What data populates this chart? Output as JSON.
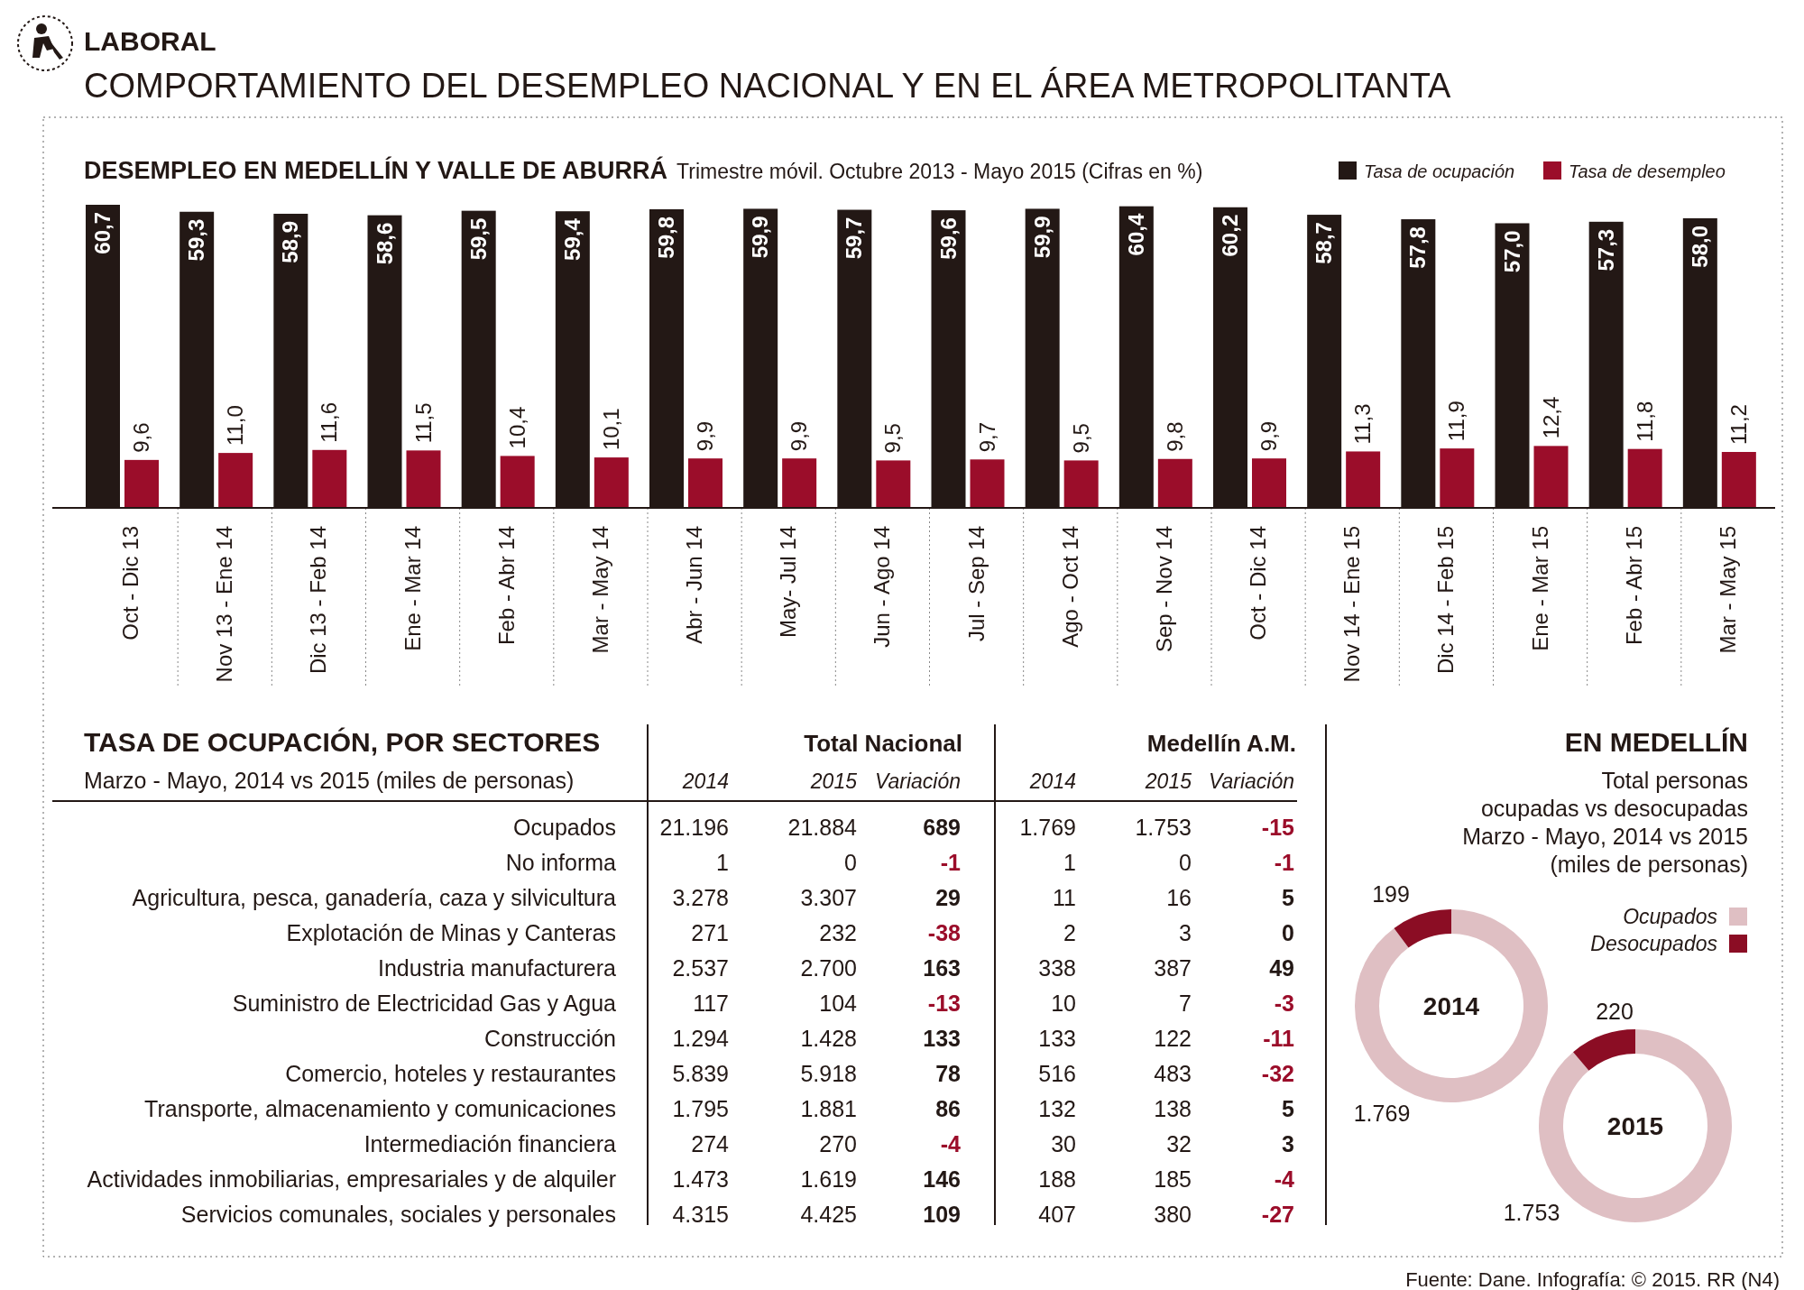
{
  "chart_data": [
    {
      "type": "bar",
      "title": "DESEMPLEO EN MEDELLÍN Y VALLE DE ABURRÁ",
      "subtitle": "Trimestre móvil. Octubre 2013 - Mayo 2015 (Cifras en %)",
      "legend": "top right",
      "categories": [
        "Oct - Dic 13",
        "Nov 13 - Ene 14",
        "Dic 13 - Feb 14",
        "Ene - Mar 14",
        "Feb - Abr 14",
        "Mar - May 14",
        "Abr - Jun 14",
        "May- Jul 14",
        "Jun - Ago 14",
        "Jul - Sep 14",
        "Ago - Oct 14",
        "Sep - Nov 14",
        "Oct - Dic 14",
        "Nov 14 - Ene 15",
        "Dic 14 - Feb 15",
        "Ene - Mar 15",
        "Feb - Abr 15",
        "Mar - May 15"
      ],
      "series": [
        {
          "name": "Tasa de ocupación",
          "color": "#231815",
          "values": [
            60.7,
            59.3,
            58.9,
            58.6,
            59.5,
            59.4,
            59.8,
            59.9,
            59.7,
            59.6,
            59.9,
            60.4,
            60.2,
            58.7,
            57.8,
            57.0,
            57.3,
            58.0
          ],
          "value_labels": [
            "60,7",
            "59,3",
            "58,9",
            "58,6",
            "59,5",
            "59,4",
            "59,8",
            "59,9",
            "59,7",
            "59,6",
            "59,9",
            "60,4",
            "60,2",
            "58,7",
            "57,8",
            "57,0",
            "57,3",
            "58,0"
          ]
        },
        {
          "name": "Tasa de desempleo",
          "color": "#9b0d2a",
          "values": [
            9.6,
            11.0,
            11.6,
            11.5,
            10.4,
            10.1,
            9.9,
            9.9,
            9.5,
            9.7,
            9.5,
            9.8,
            9.9,
            11.3,
            11.9,
            12.4,
            11.8,
            11.2
          ],
          "value_labels": [
            "9,6",
            "11,0",
            "11,6",
            "11,5",
            "10,4",
            "10,1",
            "9,9",
            "9,9",
            "9,5",
            "9,7",
            "9,5",
            "9,8",
            "9,9",
            "11,3",
            "11,9",
            "12,4",
            "11,8",
            "11,2"
          ]
        }
      ],
      "annotations": [
        "LABORAL",
        "COMPORTAMIENTO DEL DESEMPLEO NACIONAL Y EN EL ÁREA METROPOLITANTA",
        "Fuente: Dane. Infografía: © 2015. RR (N4)"
      ]
    },
    {
      "type": "other",
      "title": "TASA DE OCUPACIÓN, POR SECTORES",
      "subtitle": "Marzo - Mayo, 2014 vs 2015 (miles de personas)",
      "annotations": [
        "Total Nacional",
        "Medellín A.M."
      ],
      "categories": [
        "Ocupados",
        "No informa",
        "Agricultura, pesca, ganadería, caza y silvicultura",
        "Explotación de Minas y Canteras",
        "Industria manufacturera",
        "Suministro de Electricidad Gas y Agua",
        "Construcción",
        "Comercio, hoteles y restaurantes",
        "Transporte, almacenamiento y comunicaciones",
        "Intermediación financiera",
        "Actividades inmobiliarias, empresariales y de alquiler",
        "Servicios comunales, sociales y personales"
      ],
      "series": [
        {
          "name": "2014",
          "color": "#231815",
          "values": [
            21196,
            1,
            3278,
            271,
            2537,
            117,
            1294,
            5839,
            1795,
            274,
            1473,
            4315
          ],
          "value_labels": [
            "21.196",
            "1",
            "3.278",
            "271",
            "2.537",
            "117",
            "1.294",
            "5.839",
            "1.795",
            "274",
            "1.473",
            "4.315"
          ]
        },
        {
          "name": "2015",
          "color": "#231815",
          "values": [
            21884,
            0,
            3307,
            232,
            2700,
            104,
            1428,
            5918,
            1881,
            270,
            1619,
            4425
          ],
          "value_labels": [
            "21.884",
            "0",
            "3.307",
            "232",
            "2.700",
            "104",
            "1.428",
            "5.918",
            "1.881",
            "270",
            "1.619",
            "4.425"
          ]
        },
        {
          "name": "Variación",
          "values": [
            689,
            -1,
            29,
            -38,
            163,
            -13,
            133,
            78,
            86,
            -4,
            146,
            109
          ],
          "value_labels": [
            "689",
            "-1",
            "29",
            "-38",
            "163",
            "-13",
            "133",
            "78",
            "86",
            "-4",
            "146",
            "109"
          ],
          "colors": [
            "#231815",
            "#9b0d2a",
            "#231815",
            "#9b0d2a",
            "#231815",
            "#9b0d2a",
            "#231815",
            "#231815",
            "#231815",
            "#9b0d2a",
            "#231815",
            "#231815"
          ]
        },
        {
          "name": "2014",
          "color": "#231815",
          "values": [
            1769,
            1,
            11,
            2,
            338,
            10,
            133,
            516,
            132,
            30,
            188,
            407
          ],
          "value_labels": [
            "1.769",
            "1",
            "11",
            "2",
            "338",
            "10",
            "133",
            "516",
            "132",
            "30",
            "188",
            "407"
          ]
        },
        {
          "name": "2015",
          "color": "#231815",
          "values": [
            1753,
            0,
            16,
            3,
            387,
            7,
            122,
            483,
            138,
            32,
            185,
            380
          ],
          "value_labels": [
            "1.753",
            "0",
            "16",
            "3",
            "387",
            "7",
            "122",
            "483",
            "138",
            "32",
            "185",
            "380"
          ]
        },
        {
          "name": "Variación",
          "values": [
            -15,
            -1,
            5,
            0,
            49,
            -3,
            -11,
            -32,
            5,
            3,
            -4,
            -27
          ],
          "value_labels": [
            "-15",
            "-1",
            "5",
            "0",
            "49",
            "-3",
            "-11",
            "-32",
            "5",
            "3",
            "-4",
            "-27"
          ],
          "colors": [
            "#9b0d2a",
            "#9b0d2a",
            "#231815",
            "#231815",
            "#231815",
            "#9b0d2a",
            "#9b0d2a",
            "#9b0d2a",
            "#231815",
            "#231815",
            "#9b0d2a",
            "#9b0d2a"
          ]
        }
      ]
    },
    {
      "type": "donut",
      "title": "EN MEDELLÍN",
      "subtitle": "Total personas\nocupadas vs desocupadas\nMarzo - Mayo, 2014 vs 2015\n(miles de personas)",
      "legend": "right",
      "categories": [
        "Ocupados",
        "Desocupados"
      ],
      "values": [
        1769,
        199
      ],
      "value_labels": [
        "1.769",
        "199"
      ],
      "colors": [
        "#dfbfc3",
        "#8b0d24"
      ],
      "annotations": [
        "2014"
      ]
    },
    {
      "type": "donut",
      "values": [
        1753,
        220
      ],
      "value_labels": [
        "1.753",
        "220"
      ],
      "colors": [
        "#dfbfc3",
        "#8b0d24"
      ],
      "annotations": [
        "2015"
      ]
    }
  ]
}
